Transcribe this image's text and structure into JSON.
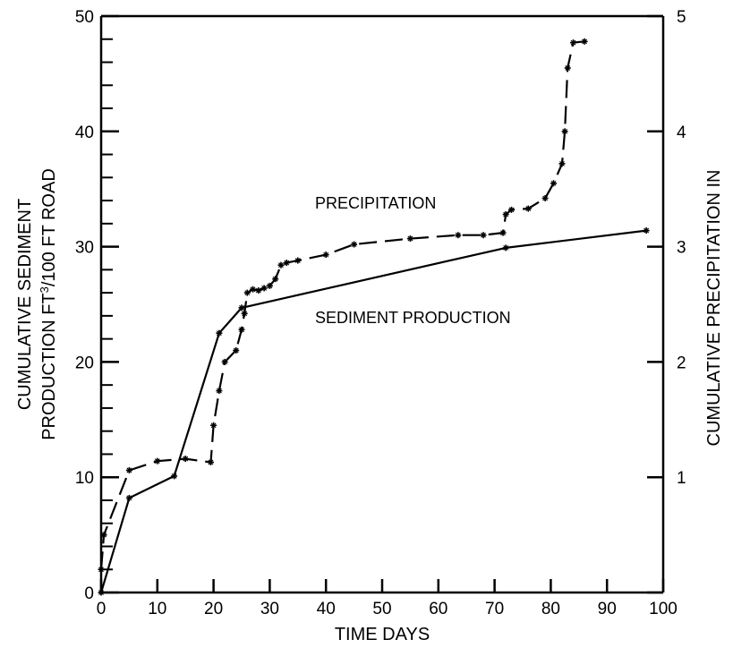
{
  "chart_data": {
    "type": "line",
    "xlabel": "TIME DAYS",
    "ylabel_left_line1": "CUMULATIVE SEDIMENT",
    "ylabel_left_line2_prefix": "PRODUCTION FT",
    "ylabel_left_line2_sup": "3",
    "ylabel_left_line2_suffix": "/100 FT ROAD",
    "ylabel_right": "CUMULATIVE PRECIPITATION IN",
    "xlim": [
      0,
      100
    ],
    "ylim_left": [
      0,
      50
    ],
    "ylim_right": [
      0,
      5
    ],
    "x_ticks": [
      "0",
      "10",
      "20",
      "30",
      "40",
      "50",
      "60",
      "70",
      "80",
      "90",
      "100"
    ],
    "y_left_ticks": [
      "0",
      "10",
      "20",
      "30",
      "40",
      "50"
    ],
    "y_right_ticks": [
      "1",
      "2",
      "3",
      "4",
      "5"
    ],
    "annotations": [
      {
        "text": "PRECIPITATION",
        "x": 50,
        "y": 32.2
      },
      {
        "text": "SEDIMENT PRODUCTION",
        "x": 57,
        "y": 22.3
      }
    ],
    "series": [
      {
        "name": "SEDIMENT PRODUCTION",
        "style": "solid",
        "axis": "left",
        "color": "#000000",
        "x": [
          0,
          5,
          13,
          21,
          25,
          72,
          97
        ],
        "y": [
          0,
          8.2,
          10.1,
          22.5,
          24.7,
          29.9,
          31.4
        ]
      },
      {
        "name": "PRECIPITATION",
        "style": "dashed",
        "axis": "right",
        "color": "#000000",
        "x": [
          0,
          0.5,
          5,
          10,
          15,
          19.5,
          20,
          21,
          22,
          24,
          25,
          25.5,
          26,
          27,
          28,
          29,
          30,
          31,
          32,
          33,
          35,
          40,
          45,
          55,
          63.5,
          68,
          71.5,
          72,
          73,
          76,
          79,
          80.5,
          82,
          82.5,
          83,
          84,
          86
        ],
        "y": [
          0.2,
          0.5,
          1.06,
          1.14,
          1.16,
          1.13,
          1.45,
          1.75,
          2.0,
          2.1,
          2.28,
          2.42,
          2.6,
          2.63,
          2.62,
          2.64,
          2.66,
          2.72,
          2.84,
          2.86,
          2.88,
          2.93,
          3.02,
          3.07,
          3.1,
          3.1,
          3.12,
          3.28,
          3.32,
          3.33,
          3.42,
          3.55,
          3.72,
          4.0,
          4.55,
          4.77,
          4.78
        ]
      }
    ]
  }
}
